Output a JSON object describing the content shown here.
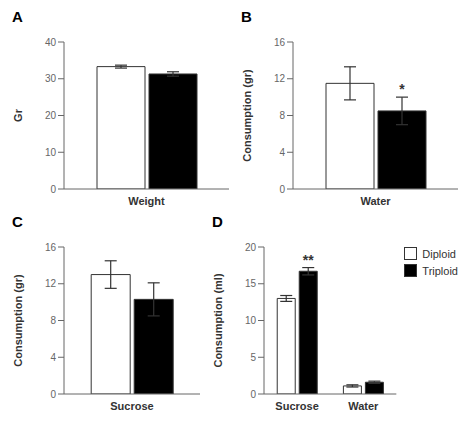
{
  "chart_data": [
    {
      "type": "bar",
      "title": "A",
      "ylabel": "Gr",
      "categories": [
        "Weight"
      ],
      "series": [
        {
          "name": "Diploid",
          "color": "white",
          "values": [
            33.3
          ],
          "errors": [
            0.4
          ]
        },
        {
          "name": "Triploid",
          "color": "black",
          "values": [
            31.3
          ],
          "errors": [
            0.6
          ]
        }
      ],
      "ylim": [
        0,
        40
      ],
      "yticks": [
        0,
        10,
        20,
        30,
        40
      ]
    },
    {
      "type": "bar",
      "title": "B",
      "ylabel": "Consumption (gr)",
      "categories": [
        "Water"
      ],
      "series": [
        {
          "name": "Diploid",
          "color": "white",
          "values": [
            11.5
          ],
          "errors": [
            1.8
          ]
        },
        {
          "name": "Triploid",
          "color": "black",
          "values": [
            8.5
          ],
          "errors": [
            1.5
          ]
        }
      ],
      "ylim": [
        0,
        16
      ],
      "yticks": [
        0,
        4,
        8,
        12,
        16
      ],
      "annotations": [
        {
          "text": "*",
          "category": "Water",
          "series": "Triploid"
        }
      ]
    },
    {
      "type": "bar",
      "title": "C",
      "ylabel": "Consumption (gr)",
      "categories": [
        "Sucrose"
      ],
      "series": [
        {
          "name": "Diploid",
          "color": "white",
          "values": [
            13.0
          ],
          "errors": [
            1.5
          ]
        },
        {
          "name": "Triploid",
          "color": "black",
          "values": [
            10.3
          ],
          "errors": [
            1.8
          ]
        }
      ],
      "ylim": [
        0,
        16
      ],
      "yticks": [
        0,
        4,
        8,
        12,
        16
      ]
    },
    {
      "type": "bar",
      "title": "D",
      "ylabel": "Consumption (ml)",
      "categories": [
        "Sucrose",
        "Water"
      ],
      "series": [
        {
          "name": "Diploid",
          "color": "white",
          "values": [
            13.0,
            1.1
          ],
          "errors": [
            0.4,
            0.15
          ]
        },
        {
          "name": "Triploid",
          "color": "black",
          "values": [
            16.7,
            1.6
          ],
          "errors": [
            0.5,
            0.15
          ]
        }
      ],
      "ylim": [
        0,
        20
      ],
      "yticks": [
        0,
        5,
        10,
        15,
        20
      ],
      "annotations": [
        {
          "text": "**",
          "category": "Sucrose",
          "series": "Triploid"
        }
      ],
      "legend": "right"
    }
  ]
}
